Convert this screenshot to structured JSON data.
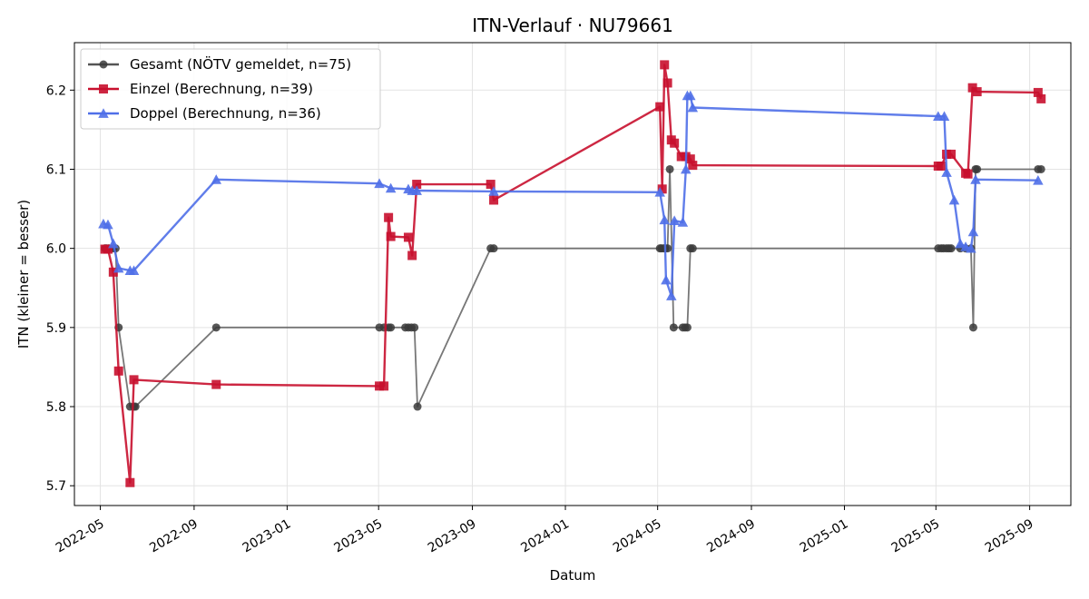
{
  "chart_data": {
    "type": "line",
    "title": "ITN-Verlauf · NU79661",
    "xlabel": "Datum",
    "ylabel": "ITN  (kleiner = besser)",
    "x_ticks": [
      "2022-05",
      "2022-09",
      "2023-01",
      "2023-05",
      "2023-09",
      "2024-01",
      "2024-05",
      "2024-09",
      "2025-01",
      "2025-05",
      "2025-09"
    ],
    "y_ticks": [
      5.7,
      5.8,
      5.9,
      6.0,
      6.1,
      6.2
    ],
    "xlim": [
      "2022-03-28",
      "2025-10-25"
    ],
    "ylim": [
      5.675,
      6.26
    ],
    "grid": true,
    "legend_position": "top-left",
    "series": [
      {
        "name": "Gesamt (NÖTV gemeldet, n=75)",
        "color": "#555555",
        "marker": "circle",
        "points": [
          [
            "2022-05-07",
            6.0
          ],
          [
            "2022-05-09",
            6.0
          ],
          [
            "2022-05-12",
            6.0
          ],
          [
            "2022-05-18",
            6.0
          ],
          [
            "2022-05-21",
            6.0
          ],
          [
            "2022-05-25",
            5.9
          ],
          [
            "2022-06-09",
            5.8
          ],
          [
            "2022-06-14",
            5.8
          ],
          [
            "2022-06-16",
            5.8
          ],
          [
            "2022-09-30",
            5.9
          ],
          [
            "2023-05-02",
            5.9
          ],
          [
            "2023-05-08",
            5.9
          ],
          [
            "2023-05-14",
            5.9
          ],
          [
            "2023-05-17",
            5.9
          ],
          [
            "2023-06-05",
            5.9
          ],
          [
            "2023-06-09",
            5.9
          ],
          [
            "2023-06-13",
            5.9
          ],
          [
            "2023-06-17",
            5.9
          ],
          [
            "2023-06-21",
            5.8
          ],
          [
            "2023-09-25",
            6.0
          ],
          [
            "2023-09-29",
            6.0
          ],
          [
            "2024-05-04",
            6.0
          ],
          [
            "2024-05-06",
            6.0
          ],
          [
            "2024-05-09",
            6.0
          ],
          [
            "2024-05-11",
            6.0
          ],
          [
            "2024-05-14",
            6.0
          ],
          [
            "2024-05-17",
            6.1
          ],
          [
            "2024-05-22",
            5.9
          ],
          [
            "2024-06-03",
            5.9
          ],
          [
            "2024-06-06",
            5.9
          ],
          [
            "2024-06-09",
            5.9
          ],
          [
            "2024-06-13",
            6.0
          ],
          [
            "2024-06-16",
            6.0
          ],
          [
            "2025-05-04",
            6.0
          ],
          [
            "2025-05-08",
            6.0
          ],
          [
            "2025-05-11",
            6.0
          ],
          [
            "2025-05-15",
            6.0
          ],
          [
            "2025-05-18",
            6.0
          ],
          [
            "2025-05-21",
            6.0
          ],
          [
            "2025-06-02",
            6.0
          ],
          [
            "2025-06-09",
            6.0
          ],
          [
            "2025-06-16",
            6.0
          ],
          [
            "2025-06-19",
            5.9
          ],
          [
            "2025-06-22",
            6.1
          ],
          [
            "2025-06-24",
            6.1
          ],
          [
            "2025-09-12",
            6.1
          ],
          [
            "2025-09-16",
            6.1
          ]
        ]
      },
      {
        "name": "Einzel (Berechnung, n=39)",
        "color": "#c8102e",
        "marker": "square",
        "points": [
          [
            "2022-05-07",
            5.999
          ],
          [
            "2022-05-11",
            5.999
          ],
          [
            "2022-05-18",
            5.97
          ],
          [
            "2022-05-25",
            5.845
          ],
          [
            "2022-06-09",
            5.704
          ],
          [
            "2022-06-14",
            5.834
          ],
          [
            "2022-09-30",
            5.828
          ],
          [
            "2023-05-02",
            5.826
          ],
          [
            "2023-05-08",
            5.826
          ],
          [
            "2023-05-14",
            6.039
          ],
          [
            "2023-05-17",
            6.015
          ],
          [
            "2023-06-09",
            6.014
          ],
          [
            "2023-06-14",
            5.991
          ],
          [
            "2023-06-20",
            6.081
          ],
          [
            "2023-09-25",
            6.081
          ],
          [
            "2023-09-29",
            6.061
          ],
          [
            "2024-05-04",
            6.179
          ],
          [
            "2024-05-07",
            6.075
          ],
          [
            "2024-05-10",
            6.232
          ],
          [
            "2024-05-14",
            6.209
          ],
          [
            "2024-05-19",
            6.137
          ],
          [
            "2024-05-23",
            6.133
          ],
          [
            "2024-06-01",
            6.116
          ],
          [
            "2024-06-07",
            6.116
          ],
          [
            "2024-06-13",
            6.113
          ],
          [
            "2024-06-16",
            6.105
          ],
          [
            "2025-05-04",
            6.104
          ],
          [
            "2025-05-08",
            6.104
          ],
          [
            "2025-05-15",
            6.119
          ],
          [
            "2025-05-21",
            6.119
          ],
          [
            "2025-06-09",
            6.095
          ],
          [
            "2025-06-12",
            6.094
          ],
          [
            "2025-06-18",
            6.203
          ],
          [
            "2025-06-24",
            6.198
          ],
          [
            "2025-09-12",
            6.197
          ],
          [
            "2025-09-16",
            6.189
          ]
        ]
      },
      {
        "name": "Doppel (Berechnung, n=36)",
        "color": "#4f6fe8",
        "marker": "triangle",
        "points": [
          [
            "2022-05-05",
            6.031
          ],
          [
            "2022-05-11",
            6.03
          ],
          [
            "2022-05-18",
            6.006
          ],
          [
            "2022-05-25",
            5.975
          ],
          [
            "2022-06-09",
            5.972
          ],
          [
            "2022-06-14",
            5.972
          ],
          [
            "2022-09-30",
            6.087
          ],
          [
            "2023-05-02",
            6.082
          ],
          [
            "2023-05-17",
            6.076
          ],
          [
            "2023-06-09",
            6.075
          ],
          [
            "2023-06-14",
            6.073
          ],
          [
            "2023-06-20",
            6.073
          ],
          [
            "2023-09-29",
            6.072
          ],
          [
            "2024-05-04",
            6.071
          ],
          [
            "2024-05-10",
            6.036
          ],
          [
            "2024-05-12",
            5.96
          ],
          [
            "2024-05-19",
            5.94
          ],
          [
            "2024-05-23",
            6.035
          ],
          [
            "2024-06-03",
            6.033
          ],
          [
            "2024-06-07",
            6.1
          ],
          [
            "2024-06-09",
            6.193
          ],
          [
            "2024-06-13",
            6.193
          ],
          [
            "2024-06-16",
            6.178
          ],
          [
            "2025-05-04",
            6.167
          ],
          [
            "2025-05-12",
            6.167
          ],
          [
            "2025-05-15",
            6.096
          ],
          [
            "2025-05-25",
            6.061
          ],
          [
            "2025-06-02",
            6.006
          ],
          [
            "2025-06-09",
            6.002
          ],
          [
            "2025-06-16",
            6.0
          ],
          [
            "2025-06-19",
            6.021
          ],
          [
            "2025-06-22",
            6.087
          ],
          [
            "2025-09-12",
            6.086
          ]
        ]
      }
    ]
  }
}
